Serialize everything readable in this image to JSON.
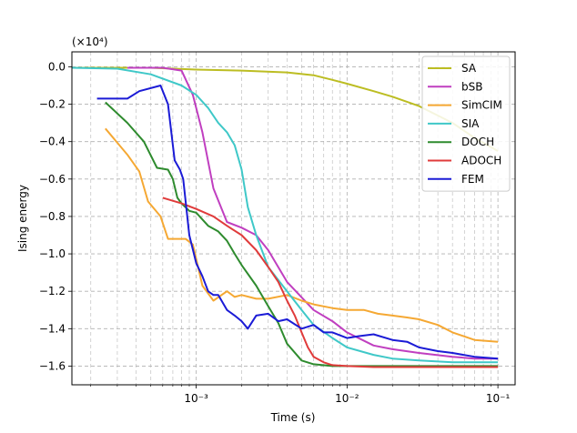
{
  "chart_data": {
    "type": "line",
    "title": "",
    "xlabel": "Time (s)",
    "ylabel": "Ising energy",
    "offset_label": "(×10⁴)",
    "xscale": "log",
    "xlim": [
      0.00015,
      0.13
    ],
    "ylim": [
      -1.7,
      0.08
    ],
    "x_major_ticks": [
      0.001,
      0.01,
      0.1
    ],
    "x_tick_labels": [
      "10⁻³",
      "10⁻²",
      "10⁻¹"
    ],
    "y_ticks": [
      0.0,
      -0.2,
      -0.4,
      -0.6,
      -0.8,
      -1.0,
      -1.2,
      -1.4,
      -1.6
    ],
    "y_tick_labels": [
      "0.0",
      "−0.2",
      "−0.4",
      "−0.6",
      "−0.8",
      "−1.0",
      "−1.2",
      "−1.4",
      "−1.6"
    ],
    "grid": true,
    "legend_position": "top-right",
    "series": [
      {
        "name": "SA",
        "color": "#bcbd22",
        "x": [
          0.00015,
          0.0005,
          0.001,
          0.002,
          0.004,
          0.006,
          0.008,
          0.01,
          0.015,
          0.02,
          0.03,
          0.05,
          0.07,
          0.1
        ],
        "y": [
          -0.005,
          -0.005,
          -0.015,
          -0.02,
          -0.03,
          -0.045,
          -0.07,
          -0.09,
          -0.13,
          -0.16,
          -0.21,
          -0.3,
          -0.38,
          -0.45
        ]
      },
      {
        "name": "bSB",
        "color": "#c03fc0",
        "x": [
          0.00035,
          0.0006,
          0.0008,
          0.00095,
          0.0011,
          0.0013,
          0.0016,
          0.002,
          0.0025,
          0.003,
          0.004,
          0.006,
          0.008,
          0.01,
          0.015,
          0.02,
          0.03,
          0.05,
          0.07,
          0.1
        ],
        "y": [
          -0.005,
          -0.005,
          -0.02,
          -0.15,
          -0.35,
          -0.65,
          -0.83,
          -0.86,
          -0.9,
          -0.98,
          -1.15,
          -1.3,
          -1.36,
          -1.42,
          -1.49,
          -1.51,
          -1.53,
          -1.55,
          -1.56,
          -1.56
        ]
      },
      {
        "name": "SimCIM",
        "color": "#f5a833",
        "x": [
          0.00025,
          0.00035,
          0.00042,
          0.00048,
          0.00058,
          0.00065,
          0.00085,
          0.00095,
          0.0011,
          0.0013,
          0.0016,
          0.0018,
          0.002,
          0.0025,
          0.003,
          0.004,
          0.005,
          0.006,
          0.008,
          0.01,
          0.013,
          0.016,
          0.02,
          0.025,
          0.03,
          0.04,
          0.05,
          0.07,
          0.1
        ],
        "y": [
          -0.33,
          -0.47,
          -0.56,
          -0.72,
          -0.8,
          -0.92,
          -0.92,
          -0.95,
          -1.17,
          -1.25,
          -1.2,
          -1.23,
          -1.22,
          -1.24,
          -1.24,
          -1.22,
          -1.25,
          -1.27,
          -1.29,
          -1.3,
          -1.3,
          -1.32,
          -1.33,
          -1.34,
          -1.35,
          -1.38,
          -1.42,
          -1.46,
          -1.47
        ]
      },
      {
        "name": "SIA",
        "color": "#3fc8c8",
        "x": [
          0.00015,
          0.0003,
          0.0005,
          0.0008,
          0.001,
          0.0012,
          0.0014,
          0.0016,
          0.0018,
          0.002,
          0.0022,
          0.0025,
          0.003,
          0.004,
          0.005,
          0.006,
          0.008,
          0.01,
          0.015,
          0.02,
          0.03,
          0.05,
          0.1
        ],
        "y": [
          -0.005,
          -0.01,
          -0.04,
          -0.1,
          -0.15,
          -0.22,
          -0.3,
          -0.35,
          -0.42,
          -0.55,
          -0.75,
          -0.9,
          -1.07,
          -1.2,
          -1.3,
          -1.38,
          -1.45,
          -1.5,
          -1.54,
          -1.56,
          -1.57,
          -1.58,
          -1.58
        ]
      },
      {
        "name": "DOCH",
        "color": "#2e8b2e",
        "x": [
          0.00025,
          0.00035,
          0.00045,
          0.00055,
          0.00065,
          0.0007,
          0.00075,
          0.0008,
          0.0009,
          0.001,
          0.0012,
          0.0014,
          0.0016,
          0.0018,
          0.002,
          0.0025,
          0.003,
          0.0035,
          0.004,
          0.005,
          0.006,
          0.008,
          0.01,
          0.015,
          0.02,
          0.05,
          0.1
        ],
        "y": [
          -0.19,
          -0.3,
          -0.4,
          -0.54,
          -0.55,
          -0.6,
          -0.7,
          -0.73,
          -0.77,
          -0.78,
          -0.85,
          -0.88,
          -0.93,
          -1.0,
          -1.06,
          -1.17,
          -1.28,
          -1.37,
          -1.48,
          -1.57,
          -1.59,
          -1.6,
          -1.6,
          -1.6,
          -1.6,
          -1.6,
          -1.6
        ]
      },
      {
        "name": "ADOCH",
        "color": "#e03b3b",
        "x": [
          0.0006,
          0.0008,
          0.001,
          0.0013,
          0.0016,
          0.002,
          0.0025,
          0.003,
          0.0035,
          0.004,
          0.0045,
          0.005,
          0.0055,
          0.006,
          0.007,
          0.008,
          0.01,
          0.015,
          0.02,
          0.05,
          0.1
        ],
        "y": [
          -0.7,
          -0.73,
          -0.76,
          -0.8,
          -0.85,
          -0.9,
          -0.98,
          -1.07,
          -1.15,
          -1.25,
          -1.33,
          -1.42,
          -1.5,
          -1.55,
          -1.58,
          -1.595,
          -1.6,
          -1.605,
          -1.605,
          -1.605,
          -1.605
        ]
      },
      {
        "name": "FEM",
        "color": "#1b1bd6",
        "x": [
          0.00022,
          0.00035,
          0.00042,
          0.00058,
          0.00065,
          0.00072,
          0.00078,
          0.00082,
          0.0009,
          0.001,
          0.0011,
          0.0012,
          0.0013,
          0.0014,
          0.0016,
          0.0018,
          0.002,
          0.0022,
          0.0025,
          0.003,
          0.0035,
          0.004,
          0.005,
          0.006,
          0.007,
          0.008,
          0.01,
          0.012,
          0.015,
          0.02,
          0.025,
          0.03,
          0.04,
          0.05,
          0.07,
          0.1
        ],
        "y": [
          -0.17,
          -0.17,
          -0.13,
          -0.1,
          -0.2,
          -0.5,
          -0.55,
          -0.6,
          -0.9,
          -1.05,
          -1.12,
          -1.2,
          -1.22,
          -1.22,
          -1.3,
          -1.33,
          -1.36,
          -1.4,
          -1.33,
          -1.32,
          -1.36,
          -1.35,
          -1.4,
          -1.38,
          -1.42,
          -1.42,
          -1.45,
          -1.44,
          -1.43,
          -1.46,
          -1.47,
          -1.5,
          -1.52,
          -1.53,
          -1.55,
          -1.56
        ]
      }
    ]
  }
}
